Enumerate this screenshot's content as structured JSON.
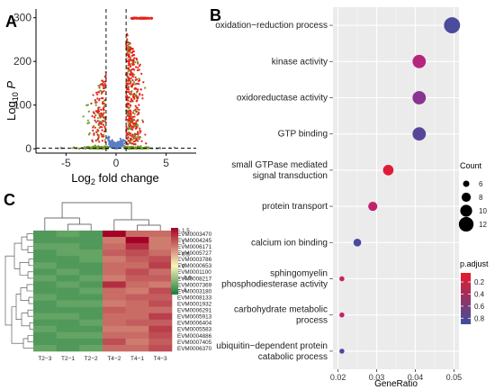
{
  "panels": {
    "a": {
      "label": "A"
    },
    "b": {
      "label": "B"
    },
    "c": {
      "label": "C"
    }
  },
  "colors": {
    "volcano_up": "#e8231a",
    "volcano_mid": "#6e9a2a",
    "volcano_ns": "#5b7fc4",
    "volcano_grey": "#9a9a9a",
    "dot_panel_bg": "#ebebeb",
    "heat_low": "#1a7a3a",
    "heat_mid": "#f7f7b8",
    "heat_high": "#a50026",
    "padj_low": "#e8192c",
    "padj_high": "#3d4f9e"
  },
  "chart_data": [
    {
      "id": "volcano",
      "type": "scatter",
      "title": "",
      "xlabel": {
        "prefix": "Log",
        "sub": "2",
        "suffix": " fold change"
      },
      "ylabel": {
        "prefix": "Log",
        "sub": "10",
        "suffix": " P"
      },
      "xlim": [
        -8,
        8
      ],
      "ylim": [
        -10,
        320
      ],
      "x_ticks": [
        -5,
        0,
        5
      ],
      "x_tick_labels": [
        "-5",
        "0",
        "5"
      ],
      "y_ticks": [
        0,
        100,
        200,
        300
      ],
      "y_tick_labels": [
        "0",
        "100",
        "200",
        "300"
      ],
      "fc_cutoffs": [
        -1,
        1
      ],
      "p_cutoff": 1.3,
      "cap_y": 300,
      "cap_x_range": [
        1.5,
        3.6
      ],
      "grid": false
    },
    {
      "id": "go-enrichment",
      "type": "scatter",
      "title": "",
      "xlabel": "GeneRatio",
      "xlim": [
        0.0187,
        0.0513
      ],
      "x_ticks": [
        0.02,
        0.03,
        0.04,
        0.05
      ],
      "x_tick_labels": [
        "0.02",
        "0.03",
        "0.04",
        "0.05"
      ],
      "grid": true,
      "terms": [
        {
          "label": [
            "oxidation−reduction process"
          ],
          "gene_ratio": 0.0495,
          "count": 13,
          "p_adjust": 0.85
        },
        {
          "label": [
            "kinase activity"
          ],
          "gene_ratio": 0.041,
          "count": 11,
          "p_adjust": 0.42
        },
        {
          "label": [
            "oxidoreductase activity"
          ],
          "gene_ratio": 0.041,
          "count": 11,
          "p_adjust": 0.62
        },
        {
          "label": [
            "GTP binding"
          ],
          "gene_ratio": 0.041,
          "count": 11,
          "p_adjust": 0.8
        },
        {
          "label": [
            "small GTPase mediated",
            "signal transduction"
          ],
          "gene_ratio": 0.033,
          "count": 9,
          "p_adjust": 0.1
        },
        {
          "label": [
            "protein transport"
          ],
          "gene_ratio": 0.029,
          "count": 8,
          "p_adjust": 0.35
        },
        {
          "label": [
            "calcium ion binding"
          ],
          "gene_ratio": 0.025,
          "count": 7,
          "p_adjust": 0.85
        },
        {
          "label": [
            "sphingomyelin",
            "phosphodiesterase activity"
          ],
          "gene_ratio": 0.021,
          "count": 5,
          "p_adjust": 0.3
        },
        {
          "label": [
            "carbohydrate metabolic",
            "process"
          ],
          "gene_ratio": 0.021,
          "count": 5,
          "p_adjust": 0.35
        },
        {
          "label": [
            "ubiquitin−dependent protein",
            "catabolic process"
          ],
          "gene_ratio": 0.021,
          "count": 5,
          "p_adjust": 0.85
        }
      ],
      "legend_count": {
        "title": "Count",
        "values": [
          6,
          8,
          10,
          12
        ],
        "labels": [
          "6",
          "8",
          "10",
          "12"
        ],
        "placement": "right"
      },
      "legend_padj": {
        "title": "p.adjust",
        "range": [
          0.05,
          0.9
        ],
        "ticks": [
          0.2,
          0.4,
          0.6,
          0.8
        ],
        "tick_labels": [
          "0.2",
          "0.4",
          "0.6",
          "0.8"
        ],
        "placement": "right"
      }
    },
    {
      "id": "heatmap",
      "type": "heatmap",
      "title": "",
      "columns": [
        "T2−3",
        "T2−1",
        "T2−2",
        "T4−2",
        "T4−1",
        "T4−3"
      ],
      "rows": [
        "EVM0003470",
        "EVM0004245",
        "EVM0006171",
        "EVM0005727",
        "EVM0003786",
        "EVM0000653",
        "EVM0001100",
        "EVM0008217",
        "EVM0007369",
        "EVM0003180",
        "EVM0008133",
        "EVM0001932",
        "EVM0006291",
        "EVM0005913",
        "EVM0006404",
        "EVM0005583",
        "EVM0004886",
        "EVM0007405",
        "EVM0006370"
      ],
      "values": [
        [
          -0.9,
          -0.8,
          -0.9,
          1.6,
          0.9,
          0.9
        ],
        [
          -0.9,
          -0.9,
          -0.9,
          0.8,
          1.6,
          0.8
        ],
        [
          -0.8,
          -0.8,
          -0.9,
          0.9,
          1.3,
          0.8
        ],
        [
          -0.9,
          -0.8,
          -0.8,
          1.0,
          1.1,
          0.9
        ],
        [
          -0.9,
          -0.9,
          -0.8,
          0.8,
          1.0,
          1.1
        ],
        [
          -0.8,
          -0.9,
          -0.9,
          0.9,
          0.9,
          1.2
        ],
        [
          -0.9,
          -0.8,
          -0.9,
          0.9,
          1.1,
          0.9
        ],
        [
          -0.8,
          -0.9,
          -0.8,
          0.8,
          1.0,
          1.0
        ],
        [
          -0.9,
          -0.8,
          -0.9,
          1.3,
          0.9,
          0.8
        ],
        [
          -0.9,
          -0.9,
          -0.8,
          0.9,
          0.8,
          1.1
        ],
        [
          -0.8,
          -0.9,
          -0.9,
          0.9,
          1.0,
          1.0
        ],
        [
          -0.9,
          -0.8,
          -0.8,
          0.8,
          0.9,
          1.1
        ],
        [
          -0.9,
          -0.9,
          -0.9,
          1.0,
          0.9,
          0.9
        ],
        [
          -0.8,
          -0.8,
          -0.9,
          0.9,
          0.9,
          1.2
        ],
        [
          -0.9,
          -0.9,
          -0.8,
          0.9,
          1.0,
          1.0
        ],
        [
          -0.8,
          -0.9,
          -0.9,
          0.8,
          0.8,
          1.2
        ],
        [
          -0.9,
          -0.8,
          -0.8,
          0.9,
          0.9,
          1.1
        ],
        [
          -0.9,
          -0.9,
          -0.9,
          1.1,
          0.8,
          1.0
        ],
        [
          -0.8,
          -0.9,
          -0.8,
          0.9,
          0.9,
          1.1
        ]
      ],
      "color_range": [
        -1.2,
        1.6
      ],
      "scale_ticks": [
        1.5,
        1,
        0.5,
        0,
        -0.5,
        -1
      ],
      "scale_tick_labels": [
        "1.5",
        "1",
        "0.5",
        "0",
        "-0.5",
        "-1"
      ],
      "column_dendrogram": true,
      "row_dendrogram": true
    }
  ]
}
